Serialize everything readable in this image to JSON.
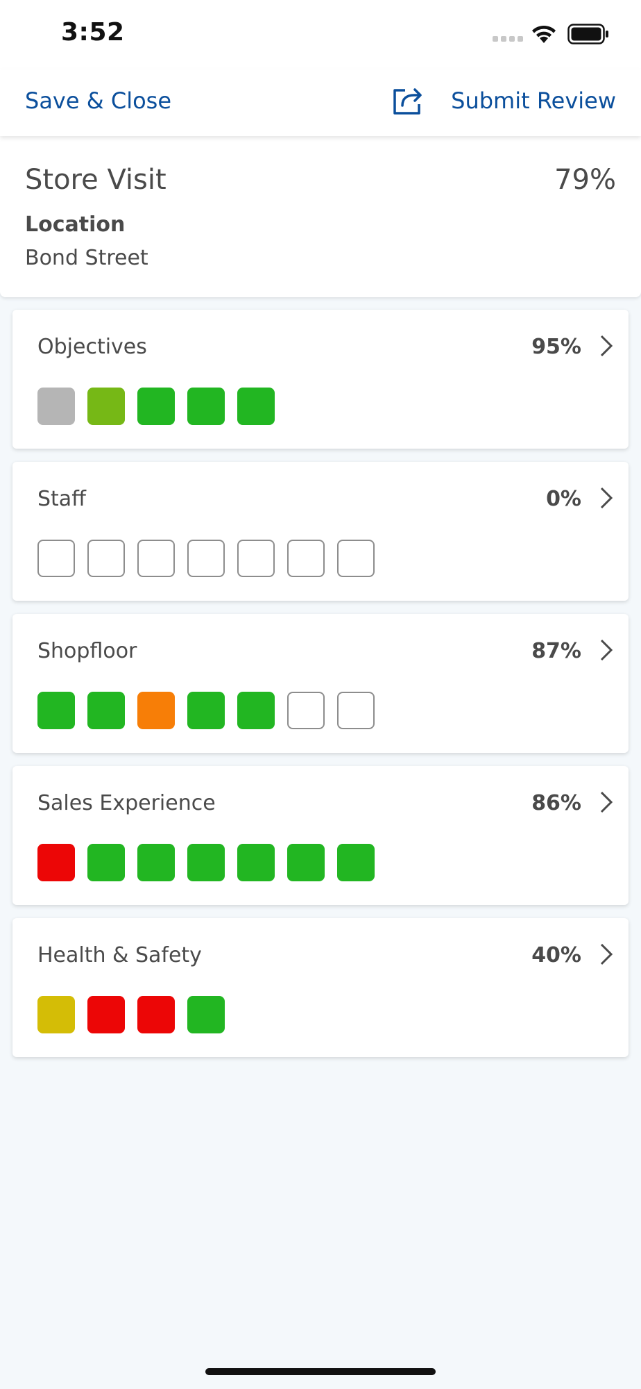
{
  "status_bar": {
    "time": "3:52"
  },
  "nav": {
    "save_close": "Save & Close",
    "submit_review": "Submit Review",
    "share_icon": "share-icon"
  },
  "summary": {
    "title": "Store Visit",
    "percent": "79%",
    "location_label": "Location",
    "location_value": "Bond Street"
  },
  "colors": {
    "green": "#22b622",
    "light_green": "#76b816",
    "grey": "#b5b5b5",
    "orange": "#f77e07",
    "red": "#ec0606",
    "yellow": "#d4bd06",
    "accent": "#0b4f9c"
  },
  "sections": [
    {
      "name": "Objectives",
      "percent": "95%",
      "squares": [
        "grey",
        "light_green",
        "green",
        "green",
        "green"
      ]
    },
    {
      "name": "Staff",
      "percent": "0%",
      "squares": [
        "empty",
        "empty",
        "empty",
        "empty",
        "empty",
        "empty",
        "empty"
      ]
    },
    {
      "name": "Shopfloor",
      "percent": "87%",
      "squares": [
        "green",
        "green",
        "orange",
        "green",
        "green",
        "empty",
        "empty"
      ]
    },
    {
      "name": "Sales Experience",
      "percent": "86%",
      "squares": [
        "red",
        "green",
        "green",
        "green",
        "green",
        "green",
        "green"
      ]
    },
    {
      "name": "Health & Safety",
      "percent": "40%",
      "squares": [
        "yellow",
        "red",
        "red",
        "green"
      ]
    }
  ]
}
